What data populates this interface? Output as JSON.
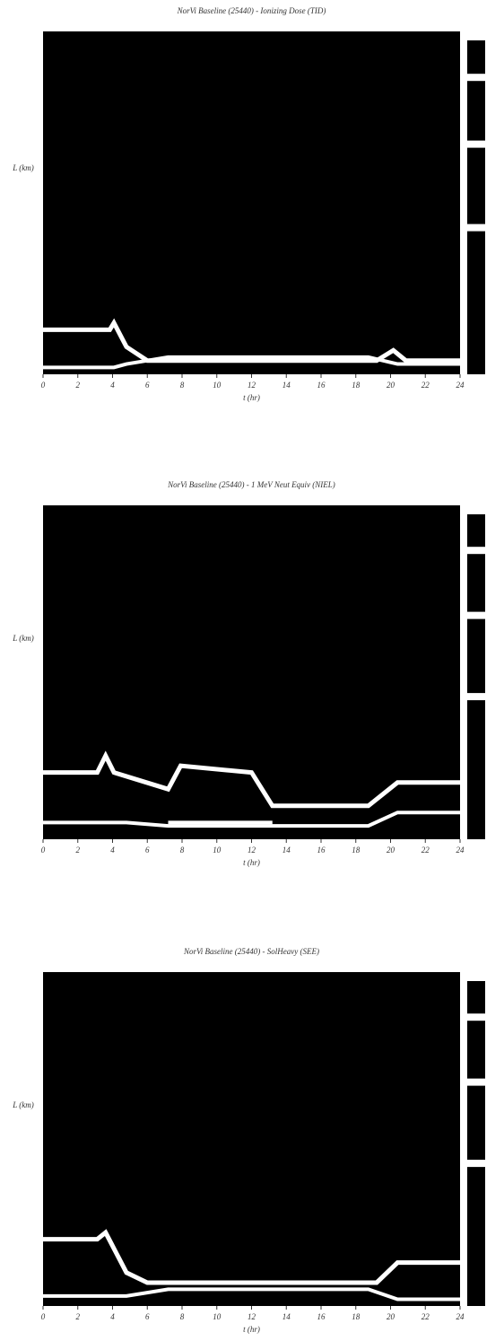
{
  "chart_data": [
    {
      "type": "heatmap",
      "title": "NorVi Baseline (25440) - Ionizing Dose (TID)",
      "x_label": "t (hr)",
      "y_label": "L (km)",
      "xlim": [
        0,
        24
      ],
      "xticks": [
        0,
        2,
        4,
        6,
        8,
        10,
        12,
        14,
        16,
        18,
        20,
        22,
        24
      ]
    },
    {
      "type": "heatmap",
      "title": "NorVi Baseline (25440) - 1 MeV Neut Equiv (NIEL)",
      "x_label": "t (hr)",
      "y_label": "L (km)",
      "xlim": [
        0,
        24
      ],
      "xticks": [
        0,
        2,
        4,
        6,
        8,
        10,
        12,
        14,
        16,
        18,
        20,
        22,
        24
      ]
    },
    {
      "type": "heatmap",
      "title": "NorVi Baseline (25440) - SolHeavy (SEE)",
      "x_label": "t (hr)",
      "y_label": "L (km)",
      "xlim": [
        0,
        24
      ],
      "xticks": [
        0,
        2,
        4,
        6,
        8,
        10,
        12,
        14,
        16,
        18,
        20,
        22,
        24
      ]
    }
  ]
}
